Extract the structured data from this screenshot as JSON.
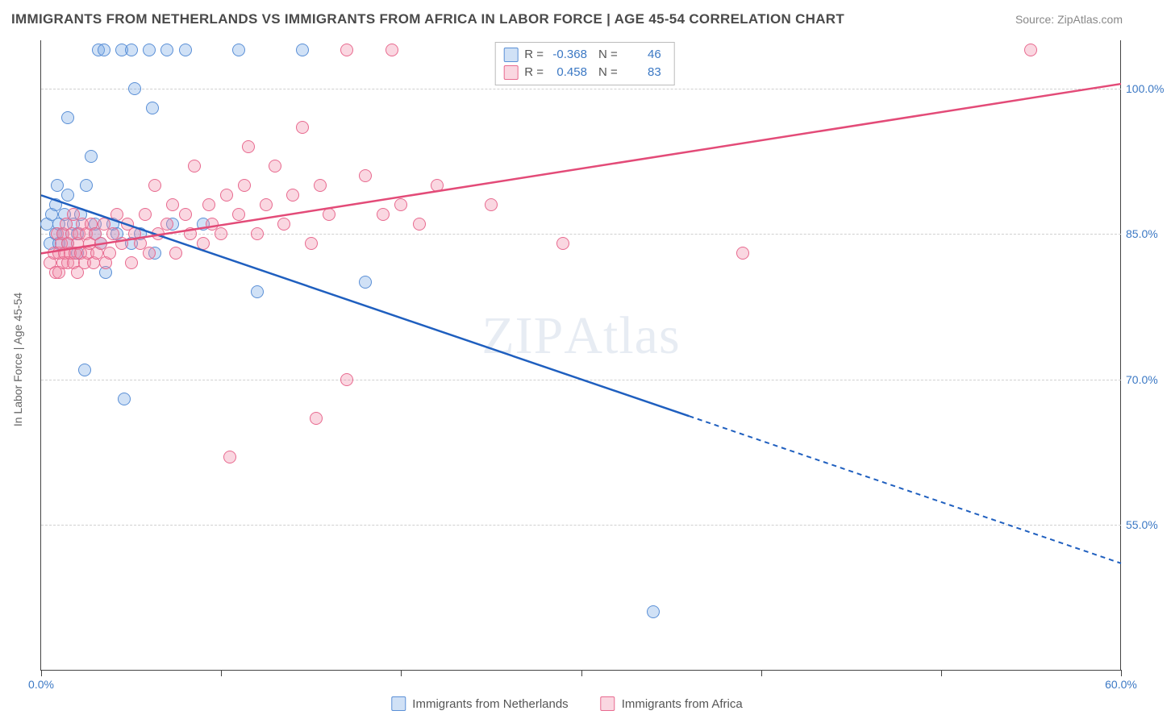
{
  "title": "IMMIGRANTS FROM NETHERLANDS VS IMMIGRANTS FROM AFRICA IN LABOR FORCE | AGE 45-54 CORRELATION CHART",
  "source": "Source: ZipAtlas.com",
  "watermark_bold": "ZIP",
  "watermark_light": "Atlas",
  "y_axis_title": "In Labor Force | Age 45-54",
  "chart": {
    "type": "scatter-with-regression",
    "xlim": [
      0,
      60
    ],
    "ylim": [
      40,
      105
    ],
    "x_ticks": [
      0,
      10,
      20,
      30,
      40,
      50,
      60
    ],
    "x_tick_labels": {
      "0": "0.0%",
      "60": "60.0%"
    },
    "y_ticks": [
      55,
      70,
      85,
      100
    ],
    "y_tick_labels": {
      "55": "55.0%",
      "70": "70.0%",
      "85": "85.0%",
      "100": "100.0%"
    },
    "background_color": "#ffffff",
    "grid_color": "#d0d0d0",
    "marker_radius": 8,
    "marker_opacity": 0.35
  },
  "series": [
    {
      "key": "netherlands",
      "name": "Immigrants from Netherlands",
      "color_stroke": "#5a8fd6",
      "color_fill": "rgba(120,170,230,0.35)",
      "line_color": "#1f5fbf",
      "r_value": "-0.368",
      "n_value": "46",
      "regression": {
        "x1": 0,
        "y1": 89,
        "x2": 60,
        "y2": 51,
        "solid_until_x": 36
      },
      "points": [
        [
          0.3,
          86
        ],
        [
          0.5,
          84
        ],
        [
          0.6,
          87
        ],
        [
          0.8,
          85
        ],
        [
          0.8,
          88
        ],
        [
          0.9,
          90
        ],
        [
          1.0,
          84
        ],
        [
          1.0,
          86
        ],
        [
          1.2,
          85
        ],
        [
          1.3,
          87
        ],
        [
          1.5,
          84
        ],
        [
          1.5,
          89
        ],
        [
          1.5,
          97
        ],
        [
          1.8,
          86
        ],
        [
          2.0,
          85
        ],
        [
          2.0,
          83
        ],
        [
          2.2,
          87
        ],
        [
          2.4,
          71
        ],
        [
          2.5,
          90
        ],
        [
          2.8,
          93
        ],
        [
          3.0,
          86
        ],
        [
          3.0,
          85
        ],
        [
          3.2,
          104
        ],
        [
          3.3,
          84
        ],
        [
          3.5,
          104
        ],
        [
          3.6,
          81
        ],
        [
          4.0,
          86
        ],
        [
          4.2,
          85
        ],
        [
          4.5,
          104
        ],
        [
          4.6,
          68
        ],
        [
          5.0,
          104
        ],
        [
          5.0,
          84
        ],
        [
          5.2,
          100
        ],
        [
          5.5,
          85
        ],
        [
          6.0,
          104
        ],
        [
          6.2,
          98
        ],
        [
          6.3,
          83
        ],
        [
          7.0,
          104
        ],
        [
          7.3,
          86
        ],
        [
          8.0,
          104
        ],
        [
          9.0,
          86
        ],
        [
          11.0,
          104
        ],
        [
          12.0,
          79
        ],
        [
          14.5,
          104
        ],
        [
          18.0,
          80
        ],
        [
          34.0,
          46
        ]
      ]
    },
    {
      "key": "africa",
      "name": "Immigrants from Africa",
      "color_stroke": "#e86a8f",
      "color_fill": "rgba(240,140,170,0.35)",
      "line_color": "#e34b78",
      "r_value": "0.458",
      "n_value": "83",
      "regression": {
        "x1": 0,
        "y1": 83,
        "x2": 60,
        "y2": 100.5,
        "solid_until_x": 60
      },
      "points": [
        [
          0.5,
          82
        ],
        [
          0.7,
          83
        ],
        [
          0.8,
          81
        ],
        [
          0.9,
          85
        ],
        [
          1.0,
          83
        ],
        [
          1.0,
          81
        ],
        [
          1.1,
          84
        ],
        [
          1.2,
          82
        ],
        [
          1.2,
          85
        ],
        [
          1.3,
          83
        ],
        [
          1.4,
          86
        ],
        [
          1.5,
          82
        ],
        [
          1.5,
          84
        ],
        [
          1.6,
          83
        ],
        [
          1.7,
          85
        ],
        [
          1.8,
          82
        ],
        [
          1.8,
          87
        ],
        [
          1.9,
          83
        ],
        [
          2.0,
          84
        ],
        [
          2.0,
          81
        ],
        [
          2.1,
          85
        ],
        [
          2.2,
          83
        ],
        [
          2.3,
          86
        ],
        [
          2.4,
          82
        ],
        [
          2.5,
          85
        ],
        [
          2.6,
          83
        ],
        [
          2.7,
          84
        ],
        [
          2.8,
          86
        ],
        [
          2.9,
          82
        ],
        [
          3.0,
          85
        ],
        [
          3.1,
          83
        ],
        [
          3.3,
          84
        ],
        [
          3.5,
          86
        ],
        [
          3.6,
          82
        ],
        [
          3.8,
          83
        ],
        [
          4.0,
          85
        ],
        [
          4.2,
          87
        ],
        [
          4.5,
          84
        ],
        [
          4.8,
          86
        ],
        [
          5.0,
          82
        ],
        [
          5.2,
          85
        ],
        [
          5.5,
          84
        ],
        [
          5.8,
          87
        ],
        [
          6.0,
          83
        ],
        [
          6.3,
          90
        ],
        [
          6.5,
          85
        ],
        [
          7.0,
          86
        ],
        [
          7.3,
          88
        ],
        [
          7.5,
          83
        ],
        [
          8.0,
          87
        ],
        [
          8.3,
          85
        ],
        [
          8.5,
          92
        ],
        [
          9.0,
          84
        ],
        [
          9.3,
          88
        ],
        [
          9.5,
          86
        ],
        [
          10.0,
          85
        ],
        [
          10.3,
          89
        ],
        [
          10.5,
          62
        ],
        [
          11.0,
          87
        ],
        [
          11.3,
          90
        ],
        [
          11.5,
          94
        ],
        [
          12.0,
          85
        ],
        [
          12.5,
          88
        ],
        [
          13.0,
          92
        ],
        [
          13.5,
          86
        ],
        [
          14.0,
          89
        ],
        [
          14.5,
          96
        ],
        [
          15.0,
          84
        ],
        [
          15.3,
          66
        ],
        [
          15.5,
          90
        ],
        [
          16.0,
          87
        ],
        [
          17.0,
          70
        ],
        [
          17.0,
          104
        ],
        [
          18.0,
          91
        ],
        [
          19.0,
          87
        ],
        [
          19.5,
          104
        ],
        [
          20.0,
          88
        ],
        [
          21.0,
          86
        ],
        [
          22.0,
          90
        ],
        [
          25.0,
          88
        ],
        [
          29.0,
          84
        ],
        [
          39.0,
          83
        ],
        [
          55.0,
          104
        ]
      ]
    }
  ],
  "legend_labels": {
    "r": "R =",
    "n": "N ="
  }
}
